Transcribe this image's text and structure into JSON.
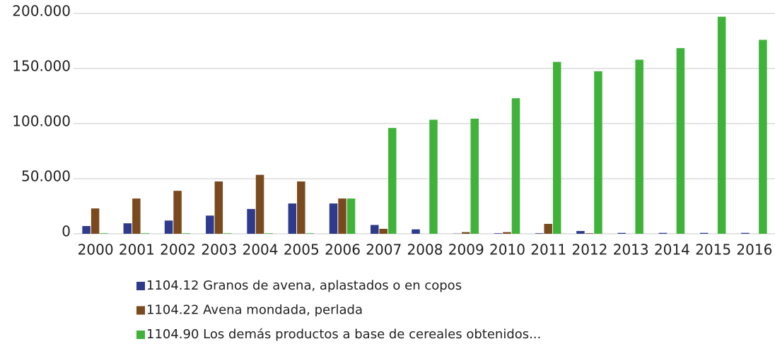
{
  "chart_data": {
    "type": "bar",
    "categories": [
      "2000",
      "2001",
      "2002",
      "2003",
      "2004",
      "2005",
      "2006",
      "2007",
      "2008",
      "2009",
      "2010",
      "2011",
      "2012",
      "2013",
      "2014",
      "2015",
      "2016"
    ],
    "series": [
      {
        "name": "1104.12 Granos de avena, aplastados o en copos",
        "color": "#2e3a8c",
        "values": [
          7000,
          9500,
          12000,
          16500,
          22500,
          27500,
          27500,
          8000,
          4000,
          200,
          500,
          500,
          2500,
          800,
          800,
          800,
          800
        ]
      },
      {
        "name": "1104.22 Avena mondada, perlada",
        "color": "#7a4a1e",
        "values": [
          23000,
          32000,
          39000,
          47500,
          53500,
          47500,
          32000,
          4500,
          0,
          1500,
          1500,
          9000,
          500,
          0,
          0,
          0,
          0
        ]
      },
      {
        "name": "1104.90 Los demás productos a base de cereales obtenidos...",
        "color": "#3fb23a",
        "values": [
          500,
          500,
          500,
          500,
          500,
          500,
          32000,
          96000,
          103500,
          104500,
          123000,
          156000,
          147500,
          158000,
          168500,
          197000,
          176000
        ]
      }
    ],
    "ylim": [
      0,
      200000
    ],
    "yticks": [
      0,
      {
        "value": 50000,
        "label": "50.000"
      },
      {
        "value": 100000,
        "label": "100.000"
      },
      {
        "value": 150000,
        "label": "150.000"
      },
      {
        "value": 200000,
        "label": "200.000"
      }
    ],
    "grid": true,
    "legend": "bottom"
  }
}
